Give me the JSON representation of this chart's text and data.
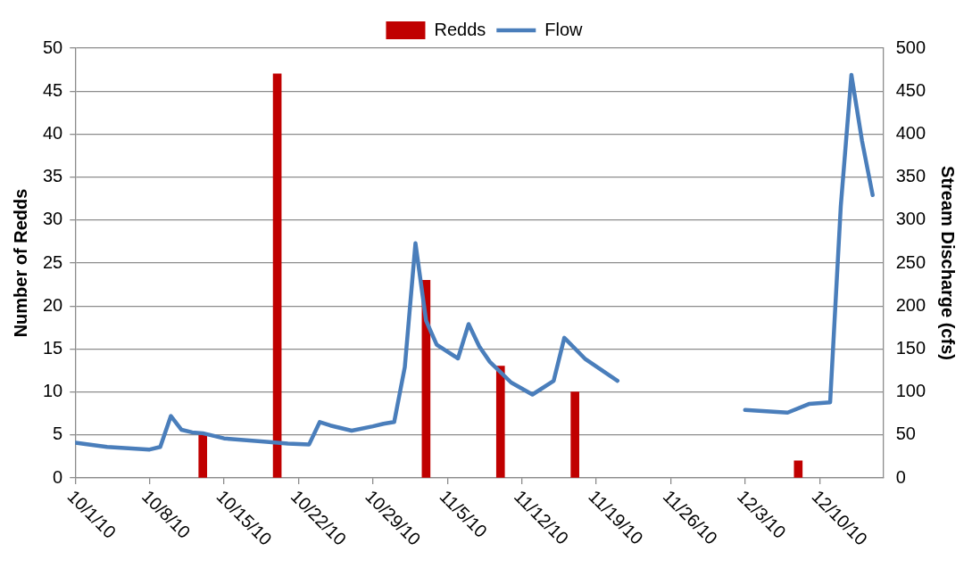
{
  "chart_data": {
    "type": "bar",
    "ylabel": "Number of Redds",
    "y2label": "Stream Discharge (cfs)",
    "xlim": [
      "--10-01",
      "--12-16"
    ],
    "xticks": [
      {
        "value": "--10-01",
        "label": "10/1/10"
      },
      {
        "value": "--10-08",
        "label": "10/8/10"
      },
      {
        "value": "--10-15",
        "label": "10/15/10"
      },
      {
        "value": "--10-22",
        "label": "10/22/10"
      },
      {
        "value": "--10-29",
        "label": "10/29/10"
      },
      {
        "value": "--11-05",
        "label": "11/5/10"
      },
      {
        "value": "--11-12",
        "label": "11/12/10"
      },
      {
        "value": "--11-19",
        "label": "11/19/10"
      },
      {
        "value": "--11-26",
        "label": "11/26/10"
      },
      {
        "value": "--12-03",
        "label": "12/3/10"
      },
      {
        "value": "--12-10",
        "label": "12/10/10"
      }
    ],
    "ylim": [
      0,
      50
    ],
    "yticks": [
      0,
      5,
      10,
      15,
      20,
      25,
      30,
      35,
      40,
      45,
      50
    ],
    "y2lim": [
      0,
      500
    ],
    "y2ticks": [
      0,
      50,
      100,
      150,
      200,
      250,
      300,
      350,
      400,
      450,
      500
    ],
    "grid": "y",
    "legend": "top",
    "series": [
      {
        "name": "Redds",
        "color": "#c00000",
        "x": [
          "--10-13",
          "--10-20",
          "--11-03",
          "--11-10",
          "--11-17",
          "--12-08"
        ],
        "values": [
          5,
          47,
          23,
          13,
          10,
          2
        ]
      },
      {
        "name": "Flow",
        "type": "line",
        "axis": "y2",
        "color": "#4a7ebb",
        "x": [
          "--10-01",
          "--10-04",
          "--10-08",
          "--10-09",
          "--10-10",
          "--10-11",
          "--10-12",
          "--10-13",
          "--10-15",
          "--10-19",
          "--10-21",
          "--10-23",
          "--10-24",
          "--10-25",
          "--10-27",
          "--10-29",
          "--10-30",
          "--10-31",
          "--11-01",
          "--11-02",
          "--11-03",
          "--11-04",
          "--11-06",
          "--11-07",
          "--11-08",
          "--11-09",
          "--11-11",
          "--11-13",
          "--11-15",
          "--11-16",
          "--11-18",
          "--11-21",
          "--11-27",
          "--12-03",
          "--12-07",
          "--12-09",
          "--12-11",
          "--12-12",
          "--12-13",
          "--12-14",
          "--12-15"
        ],
        "values": [
          41,
          36,
          33,
          36,
          72,
          56,
          53,
          52,
          46,
          42,
          40,
          39,
          65,
          61,
          55,
          60,
          63,
          65,
          129,
          273,
          183,
          155,
          139,
          179,
          153,
          135,
          111,
          97,
          113,
          163,
          138,
          113,
          null,
          79,
          76,
          86,
          88,
          316,
          469,
          392,
          329
        ]
      }
    ]
  }
}
